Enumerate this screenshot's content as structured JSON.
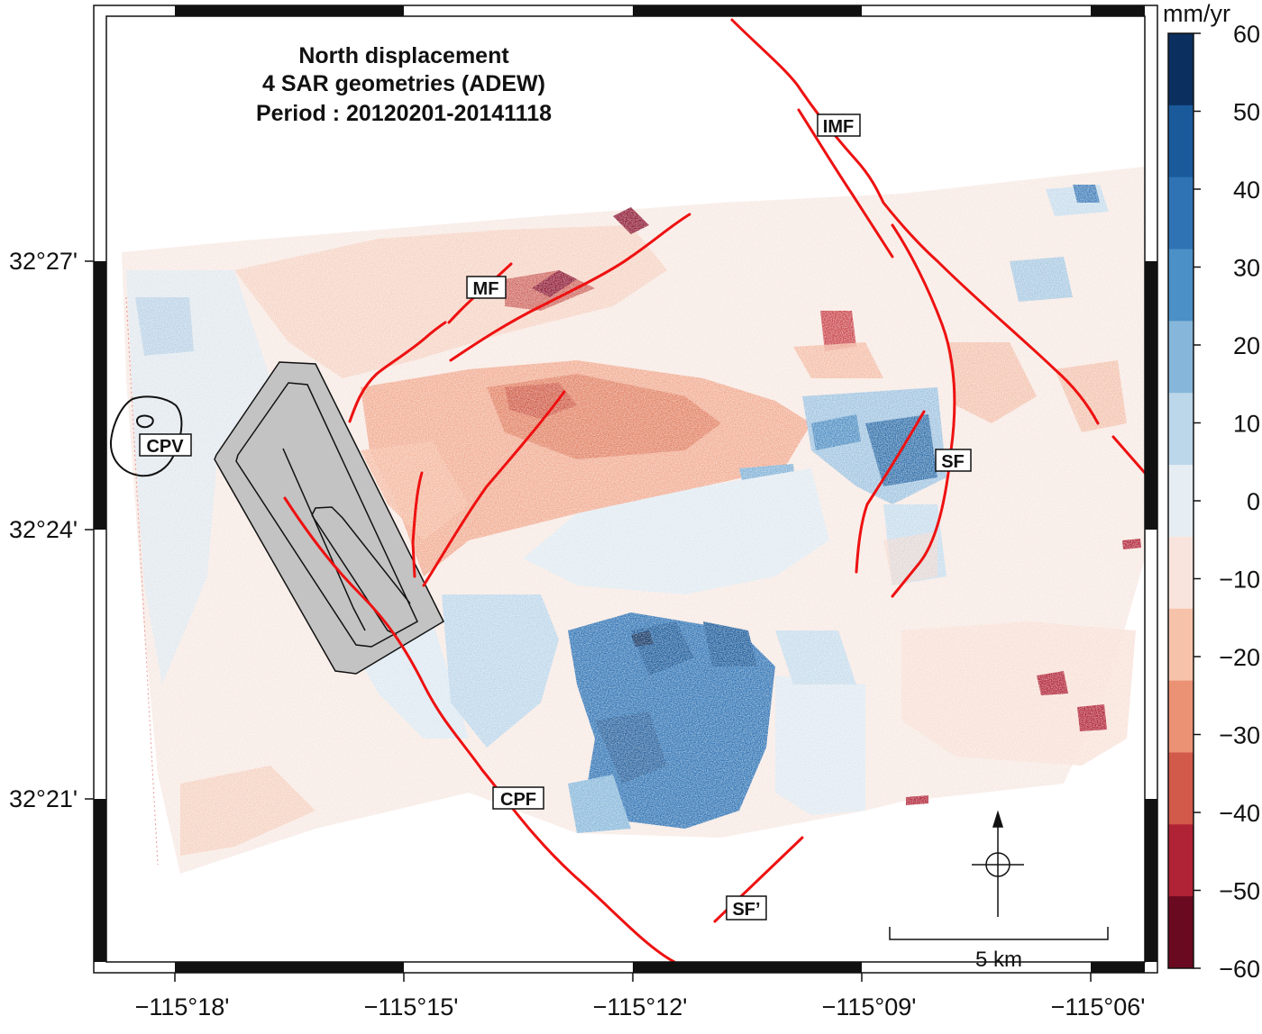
{
  "title": {
    "line1": "North displacement",
    "line2": "4 SAR geometries (ADEW)",
    "line3": "Period : 20120201-20141118"
  },
  "axes": {
    "x_ticks": [
      "−115°18'",
      "−115°15'",
      "−115°12'",
      "−115°09'",
      "−115°06'"
    ],
    "y_ticks": [
      "32°27'",
      "32°24'",
      "32°21'"
    ]
  },
  "colorbar": {
    "unit": "mm/yr",
    "labels": [
      "60",
      "50",
      "40",
      "30",
      "20",
      "10",
      "0",
      "−10",
      "−20",
      "−30",
      "−40",
      "−50",
      "−60"
    ],
    "colors": [
      "#0b2f5f",
      "#1a5a9a",
      "#2f73b4",
      "#4b90c6",
      "#86b7da",
      "#bcd6ea",
      "#e6eef3",
      "#f8e4dc",
      "#f6c3aa",
      "#eb9174",
      "#d25a4a",
      "#b02235",
      "#6a0a20"
    ]
  },
  "fault_labels": [
    "IMF",
    "MF",
    "CPV",
    "SF",
    "CPF",
    "SF’"
  ],
  "scale_bar": {
    "label": "5 km"
  },
  "north_arrow": {
    "icon": "north-arrow-icon"
  }
}
